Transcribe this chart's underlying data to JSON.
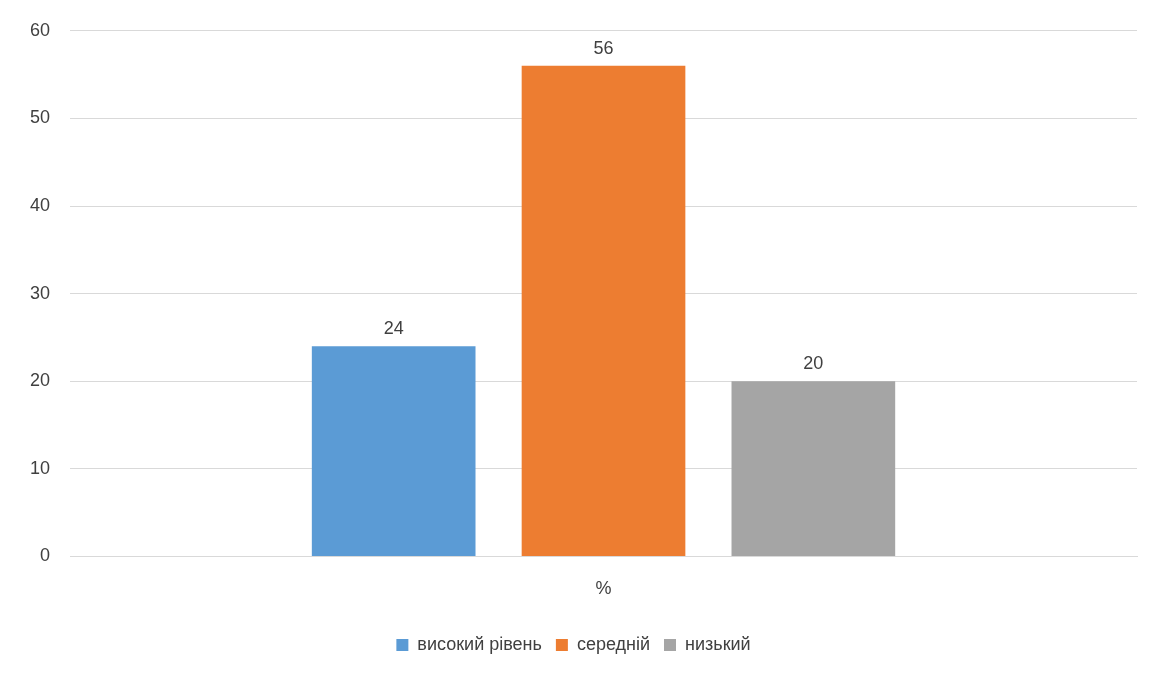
{
  "chart_data": {
    "type": "bar",
    "categories": [
      "%"
    ],
    "series": [
      {
        "name": "високий рівень",
        "color": "#5b9bd5",
        "values": [
          24
        ]
      },
      {
        "name": "середній",
        "color": "#ed7d31",
        "values": [
          56
        ]
      },
      {
        "name": "низький",
        "color": "#a5a5a5",
        "values": [
          20
        ]
      }
    ],
    "ylim": [
      0,
      60
    ],
    "yticks": [
      0,
      10,
      20,
      30,
      40,
      50,
      60
    ],
    "grid": "y",
    "legend": "bottom",
    "data_labels": true
  }
}
